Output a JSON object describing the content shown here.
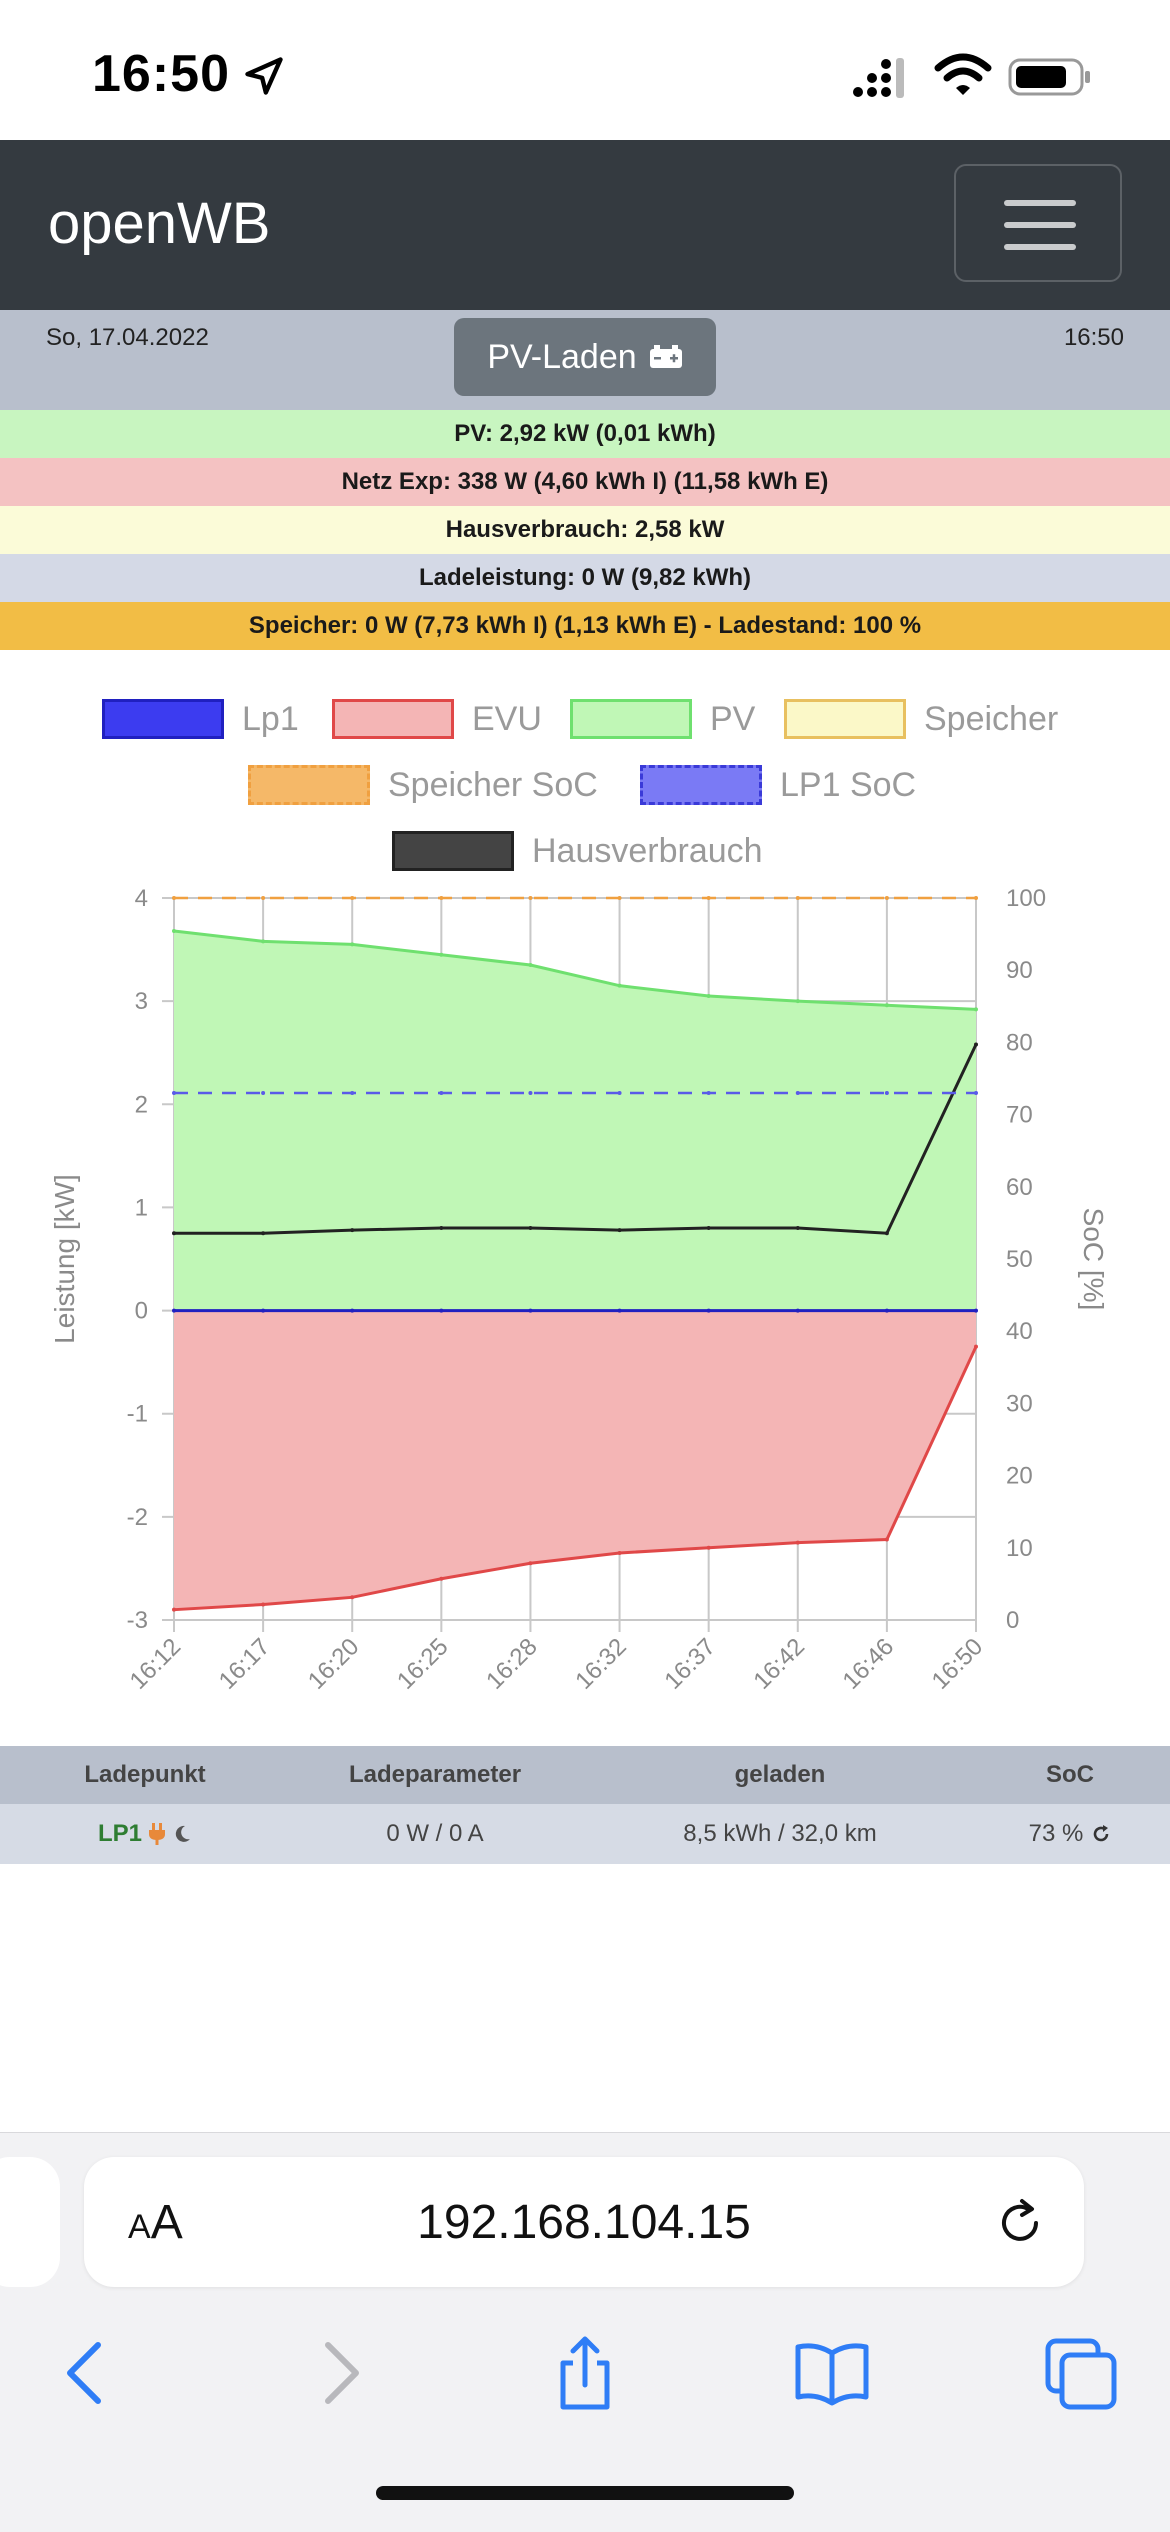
{
  "status_bar": {
    "time": "16:50"
  },
  "navbar": {
    "brand": "openWB"
  },
  "info": {
    "date": "So, 17.04.2022",
    "time": "16:50",
    "mode_button": "PV-Laden"
  },
  "strips": {
    "pv": "PV: 2,92 kW (0,01 kWh)",
    "netz": "Netz Exp: 338 W (4,60 kWh I) (11,58 kWh E)",
    "haus": "Hausverbrauch: 2,58 kW",
    "lade": "Ladeleistung: 0 W (9,82 kWh)",
    "speicher": "Speicher: 0 W (7,73 kWh I) (1,13 kWh E) - Ladestand: 100 %"
  },
  "colors": {
    "pv_strip": "#c8f5c0",
    "netz_strip": "#f4c2c2",
    "haus_strip": "#fbfbd8",
    "lade_strip": "#d4d9e6",
    "speicher_strip": "#f2bd45"
  },
  "legend": [
    {
      "label": "Lp1",
      "fill": "#3c3cf0",
      "border": "#2020c0",
      "dashed": false
    },
    {
      "label": "EVU",
      "fill": "#f4b5b5",
      "border": "#e04848",
      "dashed": false
    },
    {
      "label": "PV",
      "fill": "#c0f7b6",
      "border": "#6fe06f",
      "dashed": false
    },
    {
      "label": "Speicher",
      "fill": "#fbf8c8",
      "border": "#e8c060",
      "dashed": false
    },
    {
      "label": "Speicher SoC",
      "fill": "#f5b868",
      "border": "#f0a040",
      "dashed": true
    },
    {
      "label": "LP1 SoC",
      "fill": "#7a7af5",
      "border": "#3a3ad8",
      "dashed": true
    },
    {
      "label": "Hausverbrauch",
      "fill": "#444444",
      "border": "#222222",
      "dashed": false
    }
  ],
  "chart_data": {
    "type": "line",
    "ylabel": "Leistung [kW]",
    "y2label": "SoC [%]",
    "ylim": [
      -3,
      4
    ],
    "y2lim": [
      0,
      100
    ],
    "yticks": [
      "4",
      "3",
      "2",
      "1",
      "0",
      "-1",
      "-2",
      "-3"
    ],
    "y2ticks": [
      "100",
      "90",
      "80",
      "70",
      "60",
      "50",
      "40",
      "30",
      "20",
      "10",
      "0"
    ],
    "categories": [
      "16:12",
      "16:17",
      "16:20",
      "16:25",
      "16:28",
      "16:32",
      "16:37",
      "16:42",
      "16:46",
      "16:50"
    ],
    "grid": true,
    "series": [
      {
        "name": "PV",
        "color": "#6fe06f",
        "fill": "#c0f7b6",
        "values": [
          3.68,
          3.58,
          3.55,
          3.45,
          3.35,
          3.15,
          3.05,
          3.0,
          2.96,
          2.92
        ]
      },
      {
        "name": "EVU",
        "color": "#e04848",
        "fill": "#f4b5b5",
        "values": [
          -2.9,
          -2.85,
          -2.78,
          -2.6,
          -2.45,
          -2.35,
          -2.3,
          -2.25,
          -2.22,
          -0.35
        ]
      },
      {
        "name": "Hausverbrauch",
        "color": "#222222",
        "values": [
          0.75,
          0.75,
          0.78,
          0.8,
          0.8,
          0.78,
          0.8,
          0.8,
          0.75,
          2.58
        ]
      },
      {
        "name": "Lp1",
        "color": "#2020c0",
        "values": [
          0,
          0,
          0,
          0,
          0,
          0,
          0,
          0,
          0,
          0
        ]
      },
      {
        "name": "LP1 SoC",
        "color": "#5a5ae8",
        "dashed": true,
        "axis": "y2",
        "values": [
          73,
          73,
          73,
          73,
          73,
          73,
          73,
          73,
          73,
          73
        ]
      },
      {
        "name": "Speicher SoC",
        "color": "#f0a040",
        "dashed": true,
        "axis": "y2",
        "values": [
          100,
          100,
          100,
          100,
          100,
          100,
          100,
          100,
          100,
          100
        ]
      }
    ]
  },
  "table": {
    "headers": [
      "Ladepunkt",
      "Ladeparameter",
      "geladen",
      "SoC"
    ],
    "row": {
      "ladepunkt": "LP1",
      "parameter": "0 W / 0 A",
      "geladen": "8,5 kWh / 32,0 km",
      "soc": "73 %"
    }
  },
  "safari": {
    "aa_label_big": "A",
    "aa_label_small": "A",
    "url": "192.168.104.15"
  }
}
